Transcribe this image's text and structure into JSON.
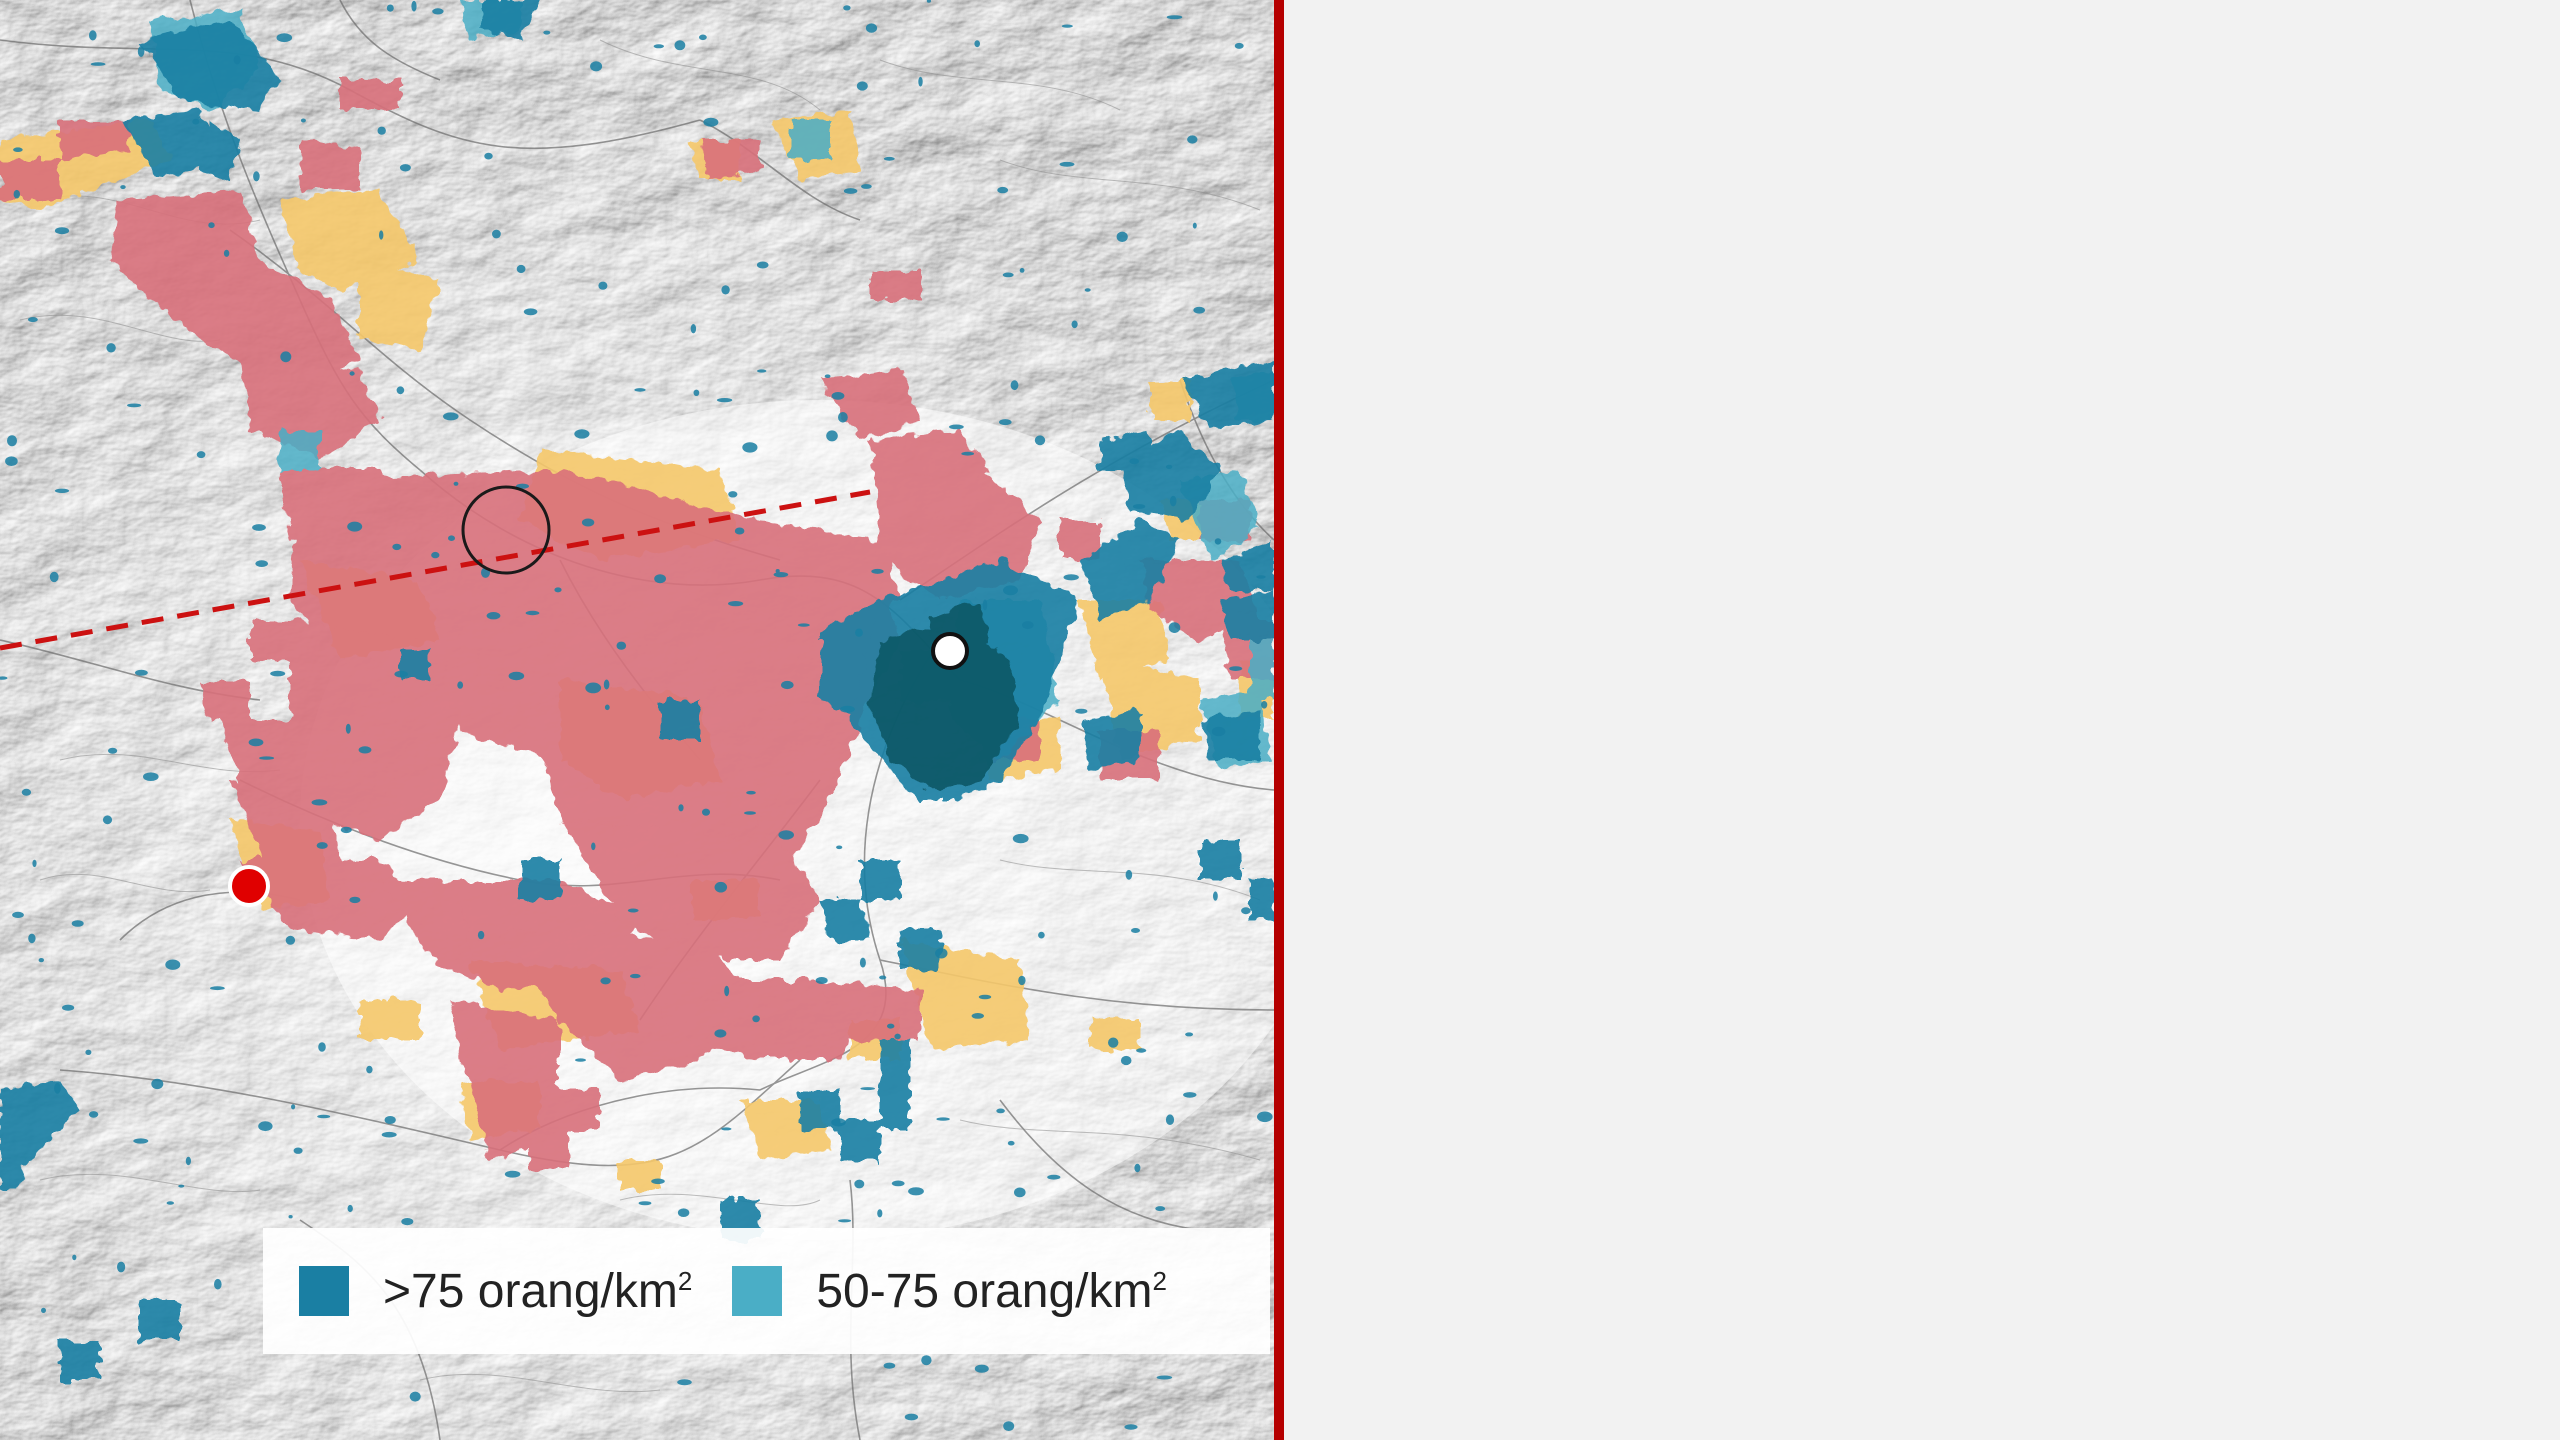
{
  "colors": {
    "terrain_base": "#e9e9e9",
    "zone_red": "#d9707a",
    "zone_yellow": "#f6c86a",
    "density_high": "#1a7fa3",
    "density_mid": "#4aaec6",
    "density_core": "#0f5866",
    "route_dashed": "#cc1111",
    "marker_red": "#e00000",
    "divider": "#b50000"
  },
  "legend": {
    "items": [
      {
        "label": ">75 orang/km",
        "sup": "2",
        "color": "#1a7fa3"
      },
      {
        "label": "50-75 orang/km",
        "sup": "2",
        "color": "#4aaec6"
      }
    ]
  },
  "icons": {
    "marker_red": "red-dot-marker-icon",
    "marker_white": "white-dot-marker-icon",
    "ring": "circle-outline-icon"
  }
}
